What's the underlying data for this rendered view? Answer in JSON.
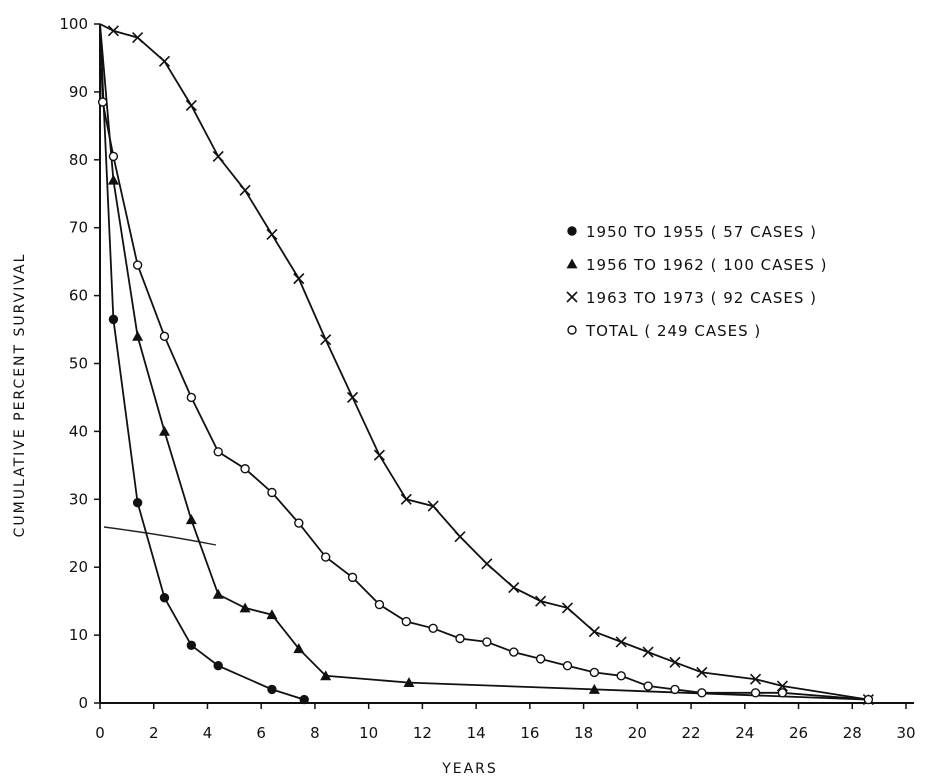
{
  "chart_data": {
    "type": "line",
    "xlabel": "YEARS",
    "ylabel": "CUMULATIVE PERCENT SURVIVAL",
    "xlim": [
      0,
      30
    ],
    "ylim": [
      0,
      100
    ],
    "x_ticks": [
      "0",
      "2",
      "4",
      "6",
      "8",
      "10",
      "12",
      "14",
      "16",
      "18",
      "20",
      "22",
      "24",
      "26",
      "28",
      "30"
    ],
    "y_ticks": [
      "0",
      "10",
      "20",
      "30",
      "40",
      "50",
      "60",
      "70",
      "80",
      "90",
      "100"
    ],
    "grid": false,
    "legend_position": "right",
    "series": [
      {
        "name": "1950 TO 1955 ( 57 CASES )",
        "marker": "filled-circle",
        "x": [
          0,
          0.5,
          1.4,
          2.4,
          3.4,
          4.4,
          6.4,
          7.6
        ],
        "y": [
          100,
          56.5,
          29.5,
          15.5,
          8.5,
          5.5,
          2,
          0.5
        ]
      },
      {
        "name": "1956 TO 1962 ( 100 CASES )",
        "marker": "filled-triangle",
        "x": [
          0,
          0.5,
          1.4,
          2.4,
          3.4,
          4.4,
          5.4,
          6.4,
          7.4,
          8.4,
          11.5,
          18.4,
          28.6
        ],
        "y": [
          100,
          77,
          54,
          40,
          27,
          16,
          14,
          13,
          8,
          4,
          3,
          2,
          0.5
        ]
      },
      {
        "name": "1963 TO 1973 ( 92 CASES )",
        "marker": "cross",
        "x": [
          0,
          0.5,
          1.4,
          2.4,
          3.4,
          4.4,
          5.4,
          6.4,
          7.4,
          8.4,
          9.4,
          10.4,
          11.4,
          12.4,
          13.4,
          14.4,
          15.4,
          16.4,
          17.4,
          18.4,
          19.4,
          20.4,
          21.4,
          22.4,
          24.4,
          25.4,
          28.6
        ],
        "y": [
          100,
          99,
          98,
          94.5,
          88,
          80.5,
          75.5,
          69,
          62.5,
          53.5,
          45,
          36.5,
          30,
          29,
          24.5,
          20.5,
          17,
          15,
          14,
          10.5,
          9,
          7.5,
          6,
          4.5,
          3.5,
          2.5,
          0.5
        ]
      },
      {
        "name": "TOTAL ( 249 CASES )",
        "marker": "open-circle",
        "x": [
          0,
          0.1,
          0.5,
          1.4,
          2.4,
          3.4,
          4.4,
          5.4,
          6.4,
          7.4,
          8.4,
          9.4,
          10.4,
          11.4,
          12.4,
          13.4,
          14.4,
          15.4,
          16.4,
          17.4,
          18.4,
          19.4,
          20.4,
          21.4,
          22.4,
          24.4,
          25.4,
          28.6
        ],
        "y": [
          100,
          88.5,
          80.5,
          64.5,
          54,
          45,
          37,
          34.5,
          31,
          26.5,
          21.5,
          18.5,
          14.5,
          12,
          11,
          9.5,
          9,
          7.5,
          6.5,
          5.5,
          4.5,
          4,
          2.5,
          2,
          1.5,
          1.5,
          1.5,
          0.5
        ]
      }
    ]
  }
}
